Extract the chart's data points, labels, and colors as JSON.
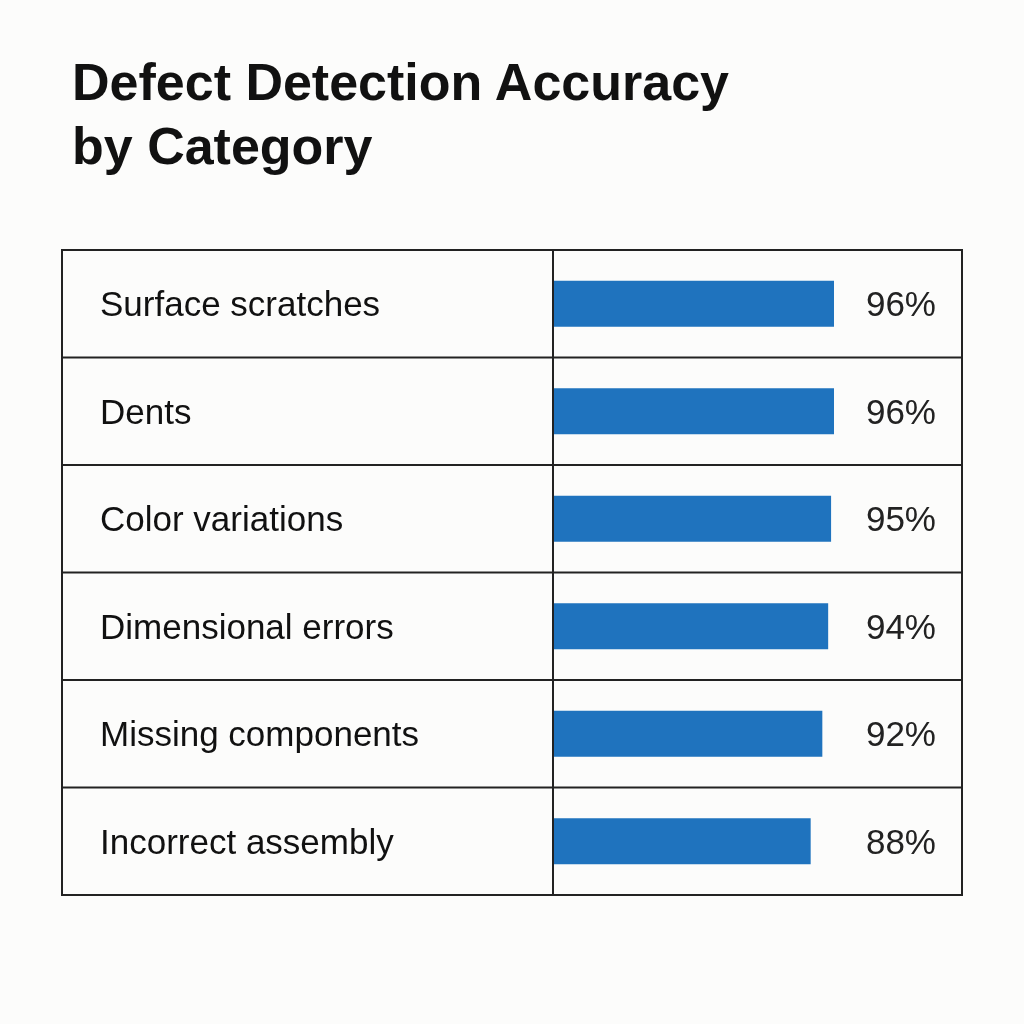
{
  "chart_data": {
    "type": "bar",
    "orientation": "horizontal",
    "title": "Defect Detection Accuracy by Category",
    "categories": [
      "Surface scratches",
      "Dents",
      "Color variations",
      "Dimensional errors",
      "Missing components",
      "Incorrect assembly"
    ],
    "values": [
      96,
      96,
      95,
      94,
      92,
      88
    ],
    "value_labels": [
      "96%",
      "96%",
      "95%",
      "94%",
      "92%",
      "88%"
    ],
    "color": "#1f73be",
    "tick_labels": "y"
  }
}
